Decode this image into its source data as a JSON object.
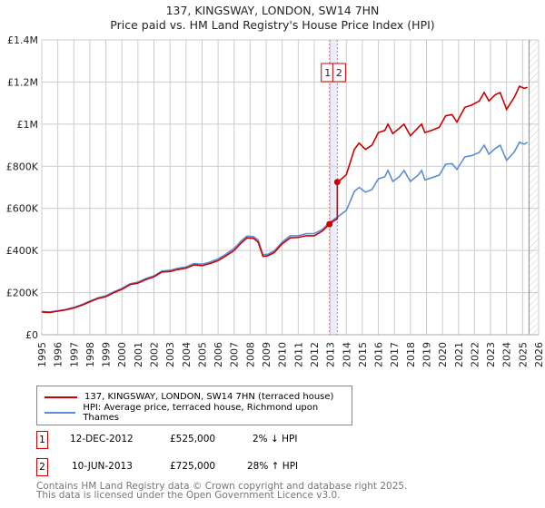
{
  "title_line1": "137, KINGSWAY, LONDON, SW14 7HN",
  "title_line2": "Price paid vs. HM Land Registry's House Price Index (HPI)",
  "chart_data": {
    "type": "line",
    "xlim": [
      1995,
      2026
    ],
    "ylim": [
      0,
      1400000
    ],
    "x_ticks": [
      "1995",
      "1996",
      "1997",
      "1998",
      "1999",
      "2000",
      "2001",
      "2002",
      "2003",
      "2004",
      "2005",
      "2006",
      "2007",
      "2008",
      "2009",
      "2010",
      "2011",
      "2012",
      "2013",
      "2014",
      "2015",
      "2016",
      "2017",
      "2018",
      "2019",
      "2020",
      "2021",
      "2022",
      "2023",
      "2024",
      "2025",
      "2026"
    ],
    "y_ticks": [
      {
        "v": 0,
        "label": "£0"
      },
      {
        "v": 200000,
        "label": "£200K"
      },
      {
        "v": 400000,
        "label": "£400K"
      },
      {
        "v": 600000,
        "label": "£600K"
      },
      {
        "v": 800000,
        "label": "£800K"
      },
      {
        "v": 1000000,
        "label": "£1M"
      },
      {
        "v": 1200000,
        "label": "£1.2M"
      },
      {
        "v": 1400000,
        "label": "£1.4M"
      }
    ],
    "grid": true,
    "series": [
      {
        "name": "137, KINGSWAY, LONDON, SW14 7HN (terraced house)",
        "color": "#cc0000",
        "x": [
          1995,
          1995.5,
          1996,
          1996.5,
          1997,
          1997.5,
          1998,
          1998.5,
          1999,
          1999.5,
          2000,
          2000.5,
          2001,
          2001.5,
          2002,
          2002.5,
          2003,
          2003.5,
          2004,
          2004.5,
          2005,
          2005.5,
          2006,
          2006.5,
          2007,
          2007.5,
          2007.8,
          2008.2,
          2008.5,
          2008.8,
          2009.1,
          2009.5,
          2010,
          2010.5,
          2011,
          2011.5,
          2012,
          2012.5,
          2012.95,
          2013.2,
          2013.44,
          2013.44,
          2013.7,
          2014,
          2014.5,
          2014.8,
          2015.2,
          2015.6,
          2016,
          2016.4,
          2016.6,
          2016.9,
          2017.3,
          2017.6,
          2018,
          2018.5,
          2018.7,
          2018.9,
          2019.3,
          2019.8,
          2020.2,
          2020.6,
          2020.9,
          2021.4,
          2021.8,
          2022.3,
          2022.6,
          2022.9,
          2023.3,
          2023.6,
          2024,
          2024.5,
          2024.8,
          2025.1,
          2025.3
        ],
        "y": [
          108000,
          106000,
          112000,
          118000,
          127000,
          140000,
          156000,
          172000,
          181000,
          200000,
          216000,
          238000,
          245000,
          262000,
          275000,
          298000,
          300000,
          310000,
          316000,
          332000,
          328000,
          338000,
          352000,
          375000,
          400000,
          440000,
          460000,
          458000,
          440000,
          372000,
          375000,
          390000,
          432000,
          460000,
          462000,
          470000,
          470000,
          492000,
          525000,
          540000,
          550000,
          725000,
          740000,
          760000,
          880000,
          910000,
          880000,
          900000,
          960000,
          970000,
          1000000,
          955000,
          980000,
          1000000,
          945000,
          985000,
          1000000,
          960000,
          970000,
          985000,
          1040000,
          1045000,
          1010000,
          1080000,
          1090000,
          1110000,
          1150000,
          1110000,
          1140000,
          1150000,
          1070000,
          1130000,
          1180000,
          1170000,
          1175000
        ]
      },
      {
        "name": "HPI: Average price, terraced house, Richmond upon Thames",
        "color": "#5b8ed6",
        "x": [
          1995,
          1995.5,
          1996,
          1996.5,
          1997,
          1997.5,
          1998,
          1998.5,
          1999,
          1999.5,
          2000,
          2000.5,
          2001,
          2001.5,
          2002,
          2002.5,
          2003,
          2003.5,
          2004,
          2004.5,
          2005,
          2005.5,
          2006,
          2006.5,
          2007,
          2007.5,
          2007.8,
          2008.2,
          2008.5,
          2008.8,
          2009.1,
          2009.5,
          2010,
          2010.5,
          2011,
          2011.5,
          2012,
          2012.5,
          2013,
          2013.5,
          2014,
          2014.5,
          2014.8,
          2015.2,
          2015.6,
          2016,
          2016.4,
          2016.6,
          2016.9,
          2017.3,
          2017.6,
          2018,
          2018.5,
          2018.7,
          2018.9,
          2019.3,
          2019.8,
          2020.2,
          2020.6,
          2020.9,
          2021.4,
          2021.8,
          2022.3,
          2022.6,
          2022.9,
          2023.3,
          2023.6,
          2024,
          2024.5,
          2024.8,
          2025.1,
          2025.3
        ],
        "y": [
          110000,
          108000,
          114000,
          120000,
          130000,
          143000,
          160000,
          175000,
          185000,
          204000,
          220000,
          242000,
          250000,
          267000,
          280000,
          303000,
          306000,
          316000,
          322000,
          338000,
          335000,
          345000,
          360000,
          383000,
          410000,
          450000,
          468000,
          466000,
          450000,
          380000,
          382000,
          398000,
          440000,
          470000,
          470000,
          480000,
          480000,
          500000,
          535000,
          562000,
          590000,
          680000,
          700000,
          677000,
          690000,
          740000,
          750000,
          780000,
          728000,
          750000,
          780000,
          728000,
          760000,
          780000,
          735000,
          745000,
          758000,
          810000,
          812000,
          785000,
          845000,
          850000,
          866000,
          900000,
          858000,
          885000,
          900000,
          828000,
          870000,
          914000,
          905000,
          914000
        ]
      }
    ],
    "annotations": [
      {
        "label": "1",
        "x": 2012.95,
        "y": 525000
      },
      {
        "label": "2",
        "x": 2013.44,
        "y": 725000
      }
    ]
  },
  "legend": {
    "red": "137, KINGSWAY, LONDON, SW14 7HN (terraced house)",
    "blue": "HPI: Average price, terraced house, Richmond upon Thames"
  },
  "sales": [
    {
      "num": "1",
      "date": "12-DEC-2012",
      "price": "£525,000",
      "hpi": "2% ↓ HPI"
    },
    {
      "num": "2",
      "date": "10-JUN-2013",
      "price": "£725,000",
      "hpi": "28% ↑ HPI"
    }
  ],
  "footer": {
    "line1": "Contains HM Land Registry data © Crown copyright and database right 2025.",
    "line2": "This data is licensed under the Open Government Licence v3.0."
  }
}
